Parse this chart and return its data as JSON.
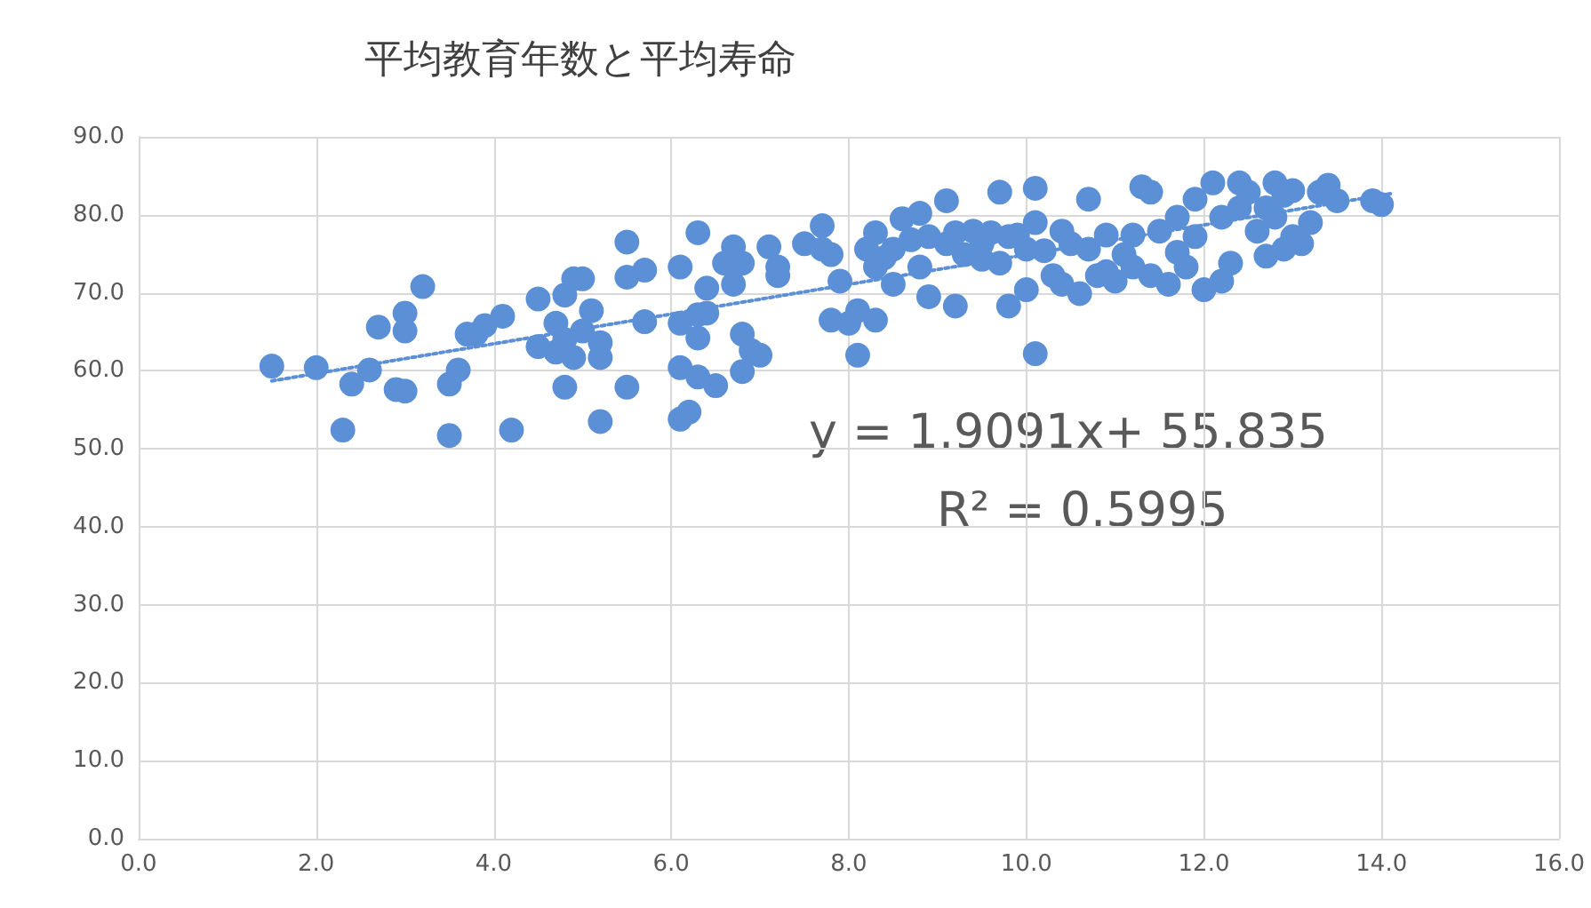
{
  "chart_data": {
    "type": "scatter",
    "title": "平均教育年数と平均寿命",
    "marker": "circle",
    "grid": true,
    "xlim": [
      0,
      16
    ],
    "xticks": [
      {
        "value": 0,
        "label": "0.0"
      },
      {
        "value": 2,
        "label": "2.0"
      },
      {
        "value": 4,
        "label": "4.0"
      },
      {
        "value": 6,
        "label": "6.0"
      },
      {
        "value": 8,
        "label": "8.0"
      },
      {
        "value": 10,
        "label": "10.0"
      },
      {
        "value": 12,
        "label": "12.0"
      },
      {
        "value": 14,
        "label": "14.0"
      },
      {
        "value": 16,
        "label": "16.0"
      }
    ],
    "ylim": [
      0,
      90
    ],
    "yticks": [
      {
        "value": 0,
        "label": "0.0"
      },
      {
        "value": 10,
        "label": "10.0"
      },
      {
        "value": 20,
        "label": "20.0"
      },
      {
        "value": 30,
        "label": "30.0"
      },
      {
        "value": 40,
        "label": "40.0"
      },
      {
        "value": 50,
        "label": "50.0"
      },
      {
        "value": 60,
        "label": "60.0"
      },
      {
        "value": 70,
        "label": "70.0"
      },
      {
        "value": 80,
        "label": "80.0"
      },
      {
        "value": 90,
        "label": "90.0"
      }
    ],
    "annotations": [
      "y = 1.9091x+ 55.835",
      "R² = 0.5995"
    ],
    "series": [
      {
        "color": "#5b8fd6",
        "x": [
          1.5,
          2.0,
          2.3,
          2.4,
          2.6,
          2.7,
          3.0,
          3.0,
          2.9,
          3.0,
          3.2,
          3.5,
          3.5,
          3.6,
          3.7,
          3.8,
          3.9,
          4.1,
          4.2,
          4.5,
          4.5,
          4.7,
          4.7,
          4.8,
          4.8,
          4.9,
          4.8,
          4.9,
          5.0,
          5.0,
          5.1,
          5.2,
          5.2,
          5.2,
          5.5,
          5.5,
          5.5,
          5.7,
          5.7,
          6.1,
          6.1,
          6.1,
          6.1,
          6.2,
          6.3,
          6.3,
          6.3,
          6.3,
          6.4,
          6.4,
          6.5,
          6.6,
          6.7,
          6.7,
          6.8,
          6.8,
          6.8,
          6.9,
          7.0,
          7.1,
          7.2,
          7.2,
          7.5,
          7.7,
          7.7,
          7.8,
          7.8,
          7.9,
          8.0,
          8.1,
          8.1,
          8.2,
          8.3,
          8.3,
          8.3,
          8.4,
          8.5,
          8.5,
          8.6,
          8.7,
          8.8,
          8.8,
          8.9,
          8.9,
          9.1,
          9.1,
          9.2,
          9.2,
          9.3,
          9.4,
          9.5,
          9.5,
          9.6,
          9.7,
          9.7,
          9.8,
          9.8,
          9.9,
          10.0,
          10.0,
          10.1,
          10.1,
          10.1,
          10.2,
          10.3,
          10.4,
          10.4,
          10.5,
          10.6,
          10.7,
          10.7,
          10.8,
          10.9,
          10.9,
          11.0,
          11.1,
          11.2,
          11.2,
          11.3,
          11.4,
          11.4,
          11.5,
          11.6,
          11.7,
          11.7,
          11.8,
          11.9,
          11.9,
          12.0,
          12.1,
          12.2,
          12.2,
          12.3,
          12.4,
          12.4,
          12.5,
          12.6,
          12.7,
          12.7,
          12.8,
          12.8,
          12.9,
          12.9,
          13.0,
          13.0,
          13.1,
          13.2,
          13.3,
          13.4,
          13.5,
          13.9,
          14.0
        ],
        "values": [
          60.6,
          60.4,
          52.4,
          58.3,
          60.1,
          65.6,
          67.4,
          65.1,
          57.6,
          57.4,
          70.8,
          51.7,
          58.3,
          60.1,
          64.7,
          64.7,
          65.8,
          67.0,
          52.4,
          69.2,
          63.1,
          66.1,
          62.4,
          64.0,
          69.7,
          71.8,
          57.9,
          61.7,
          71.8,
          65.1,
          67.7,
          63.6,
          61.7,
          53.5,
          76.5,
          72.0,
          57.9,
          72.9,
          66.3,
          60.4,
          66.1,
          53.8,
          73.3,
          54.7,
          77.7,
          67.2,
          59.2,
          64.2,
          70.6,
          67.4,
          58.1,
          73.8,
          75.9,
          71.1,
          59.9,
          64.7,
          73.8,
          62.6,
          62.0,
          75.9,
          73.3,
          72.2,
          76.3,
          75.6,
          78.6,
          66.5,
          74.9,
          71.5,
          66.1,
          67.7,
          62.0,
          75.6,
          66.5,
          77.7,
          73.3,
          74.5,
          75.6,
          71.1,
          79.5,
          76.8,
          73.3,
          80.2,
          77.2,
          69.5,
          76.3,
          81.8,
          68.3,
          77.7,
          74.9,
          77.9,
          74.3,
          76.3,
          77.7,
          73.8,
          82.9,
          68.3,
          77.2,
          77.4,
          75.6,
          70.4,
          62.2,
          83.4,
          79.0,
          75.4,
          72.2,
          77.9,
          71.1,
          76.3,
          69.9,
          82.0,
          75.6,
          72.2,
          72.7,
          77.4,
          71.5,
          74.9,
          77.4,
          73.3,
          83.6,
          72.2,
          82.9,
          77.9,
          71.1,
          79.7,
          75.2,
          73.3,
          82.0,
          77.2,
          70.4,
          84.1,
          71.5,
          79.7,
          73.8,
          84.1,
          80.9,
          82.9,
          77.9,
          80.9,
          74.7,
          84.1,
          79.7,
          75.6,
          82.5,
          77.2,
          83.1,
          76.3,
          79.0,
          82.9,
          83.8,
          81.8,
          81.8,
          81.3
        ]
      },
      {
        "type": "line",
        "color": "#5b8fd6",
        "line_style": "dotted",
        "marker": "none",
        "x": [
          1.5,
          14.1
        ],
        "values": [
          58.7,
          82.7
        ]
      }
    ]
  }
}
